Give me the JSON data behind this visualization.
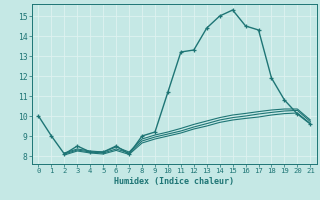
{
  "title": "",
  "xlabel": "Humidex (Indice chaleur)",
  "ylabel": "",
  "xlim": [
    -0.5,
    21.5
  ],
  "ylim": [
    7.6,
    15.6
  ],
  "xticks": [
    0,
    1,
    2,
    3,
    4,
    5,
    6,
    7,
    8,
    9,
    10,
    11,
    12,
    13,
    14,
    15,
    16,
    17,
    18,
    19,
    20,
    21
  ],
  "yticks": [
    8,
    9,
    10,
    11,
    12,
    13,
    14,
    15
  ],
  "background_color": "#c5e8e5",
  "grid_color": "#dff2f0",
  "line_color": "#1e7575",
  "curves": [
    {
      "x": [
        0,
        1,
        2,
        3,
        4,
        5,
        6,
        7,
        8,
        9,
        10,
        11,
        12,
        13,
        14,
        15,
        16,
        17,
        18,
        19,
        20,
        21
      ],
      "y": [
        10.0,
        9.0,
        8.1,
        8.5,
        8.2,
        8.2,
        8.5,
        8.1,
        9.0,
        9.2,
        11.2,
        13.2,
        13.3,
        14.4,
        15.0,
        15.3,
        14.5,
        14.3,
        11.9,
        10.8,
        10.1,
        9.6
      ],
      "marker": true,
      "lw": 1.0
    },
    {
      "x": [
        2,
        3,
        4,
        5,
        6,
        7,
        8,
        9,
        10,
        11,
        12,
        13,
        14,
        15,
        16,
        17,
        18,
        19,
        20,
        21
      ],
      "y": [
        8.1,
        8.3,
        8.2,
        8.15,
        8.35,
        8.15,
        8.75,
        8.95,
        9.1,
        9.25,
        9.45,
        9.62,
        9.8,
        9.92,
        10.0,
        10.1,
        10.18,
        10.25,
        10.28,
        9.72
      ],
      "marker": false,
      "lw": 0.8
    },
    {
      "x": [
        2,
        3,
        4,
        5,
        6,
        7,
        8,
        9,
        10,
        11,
        12,
        13,
        14,
        15,
        16,
        17,
        18,
        19,
        20,
        21
      ],
      "y": [
        8.15,
        8.35,
        8.25,
        8.2,
        8.45,
        8.2,
        8.85,
        9.05,
        9.2,
        9.38,
        9.58,
        9.75,
        9.92,
        10.05,
        10.13,
        10.22,
        10.3,
        10.35,
        10.35,
        9.8
      ],
      "marker": false,
      "lw": 0.8
    },
    {
      "x": [
        2,
        3,
        4,
        5,
        6,
        7,
        8,
        9,
        10,
        11,
        12,
        13,
        14,
        15,
        16,
        17,
        18,
        19,
        20,
        21
      ],
      "y": [
        8.05,
        8.25,
        8.15,
        8.1,
        8.28,
        8.08,
        8.65,
        8.85,
        9.0,
        9.15,
        9.35,
        9.5,
        9.68,
        9.8,
        9.88,
        9.95,
        10.05,
        10.12,
        10.15,
        9.62
      ],
      "marker": false,
      "lw": 0.8
    }
  ]
}
